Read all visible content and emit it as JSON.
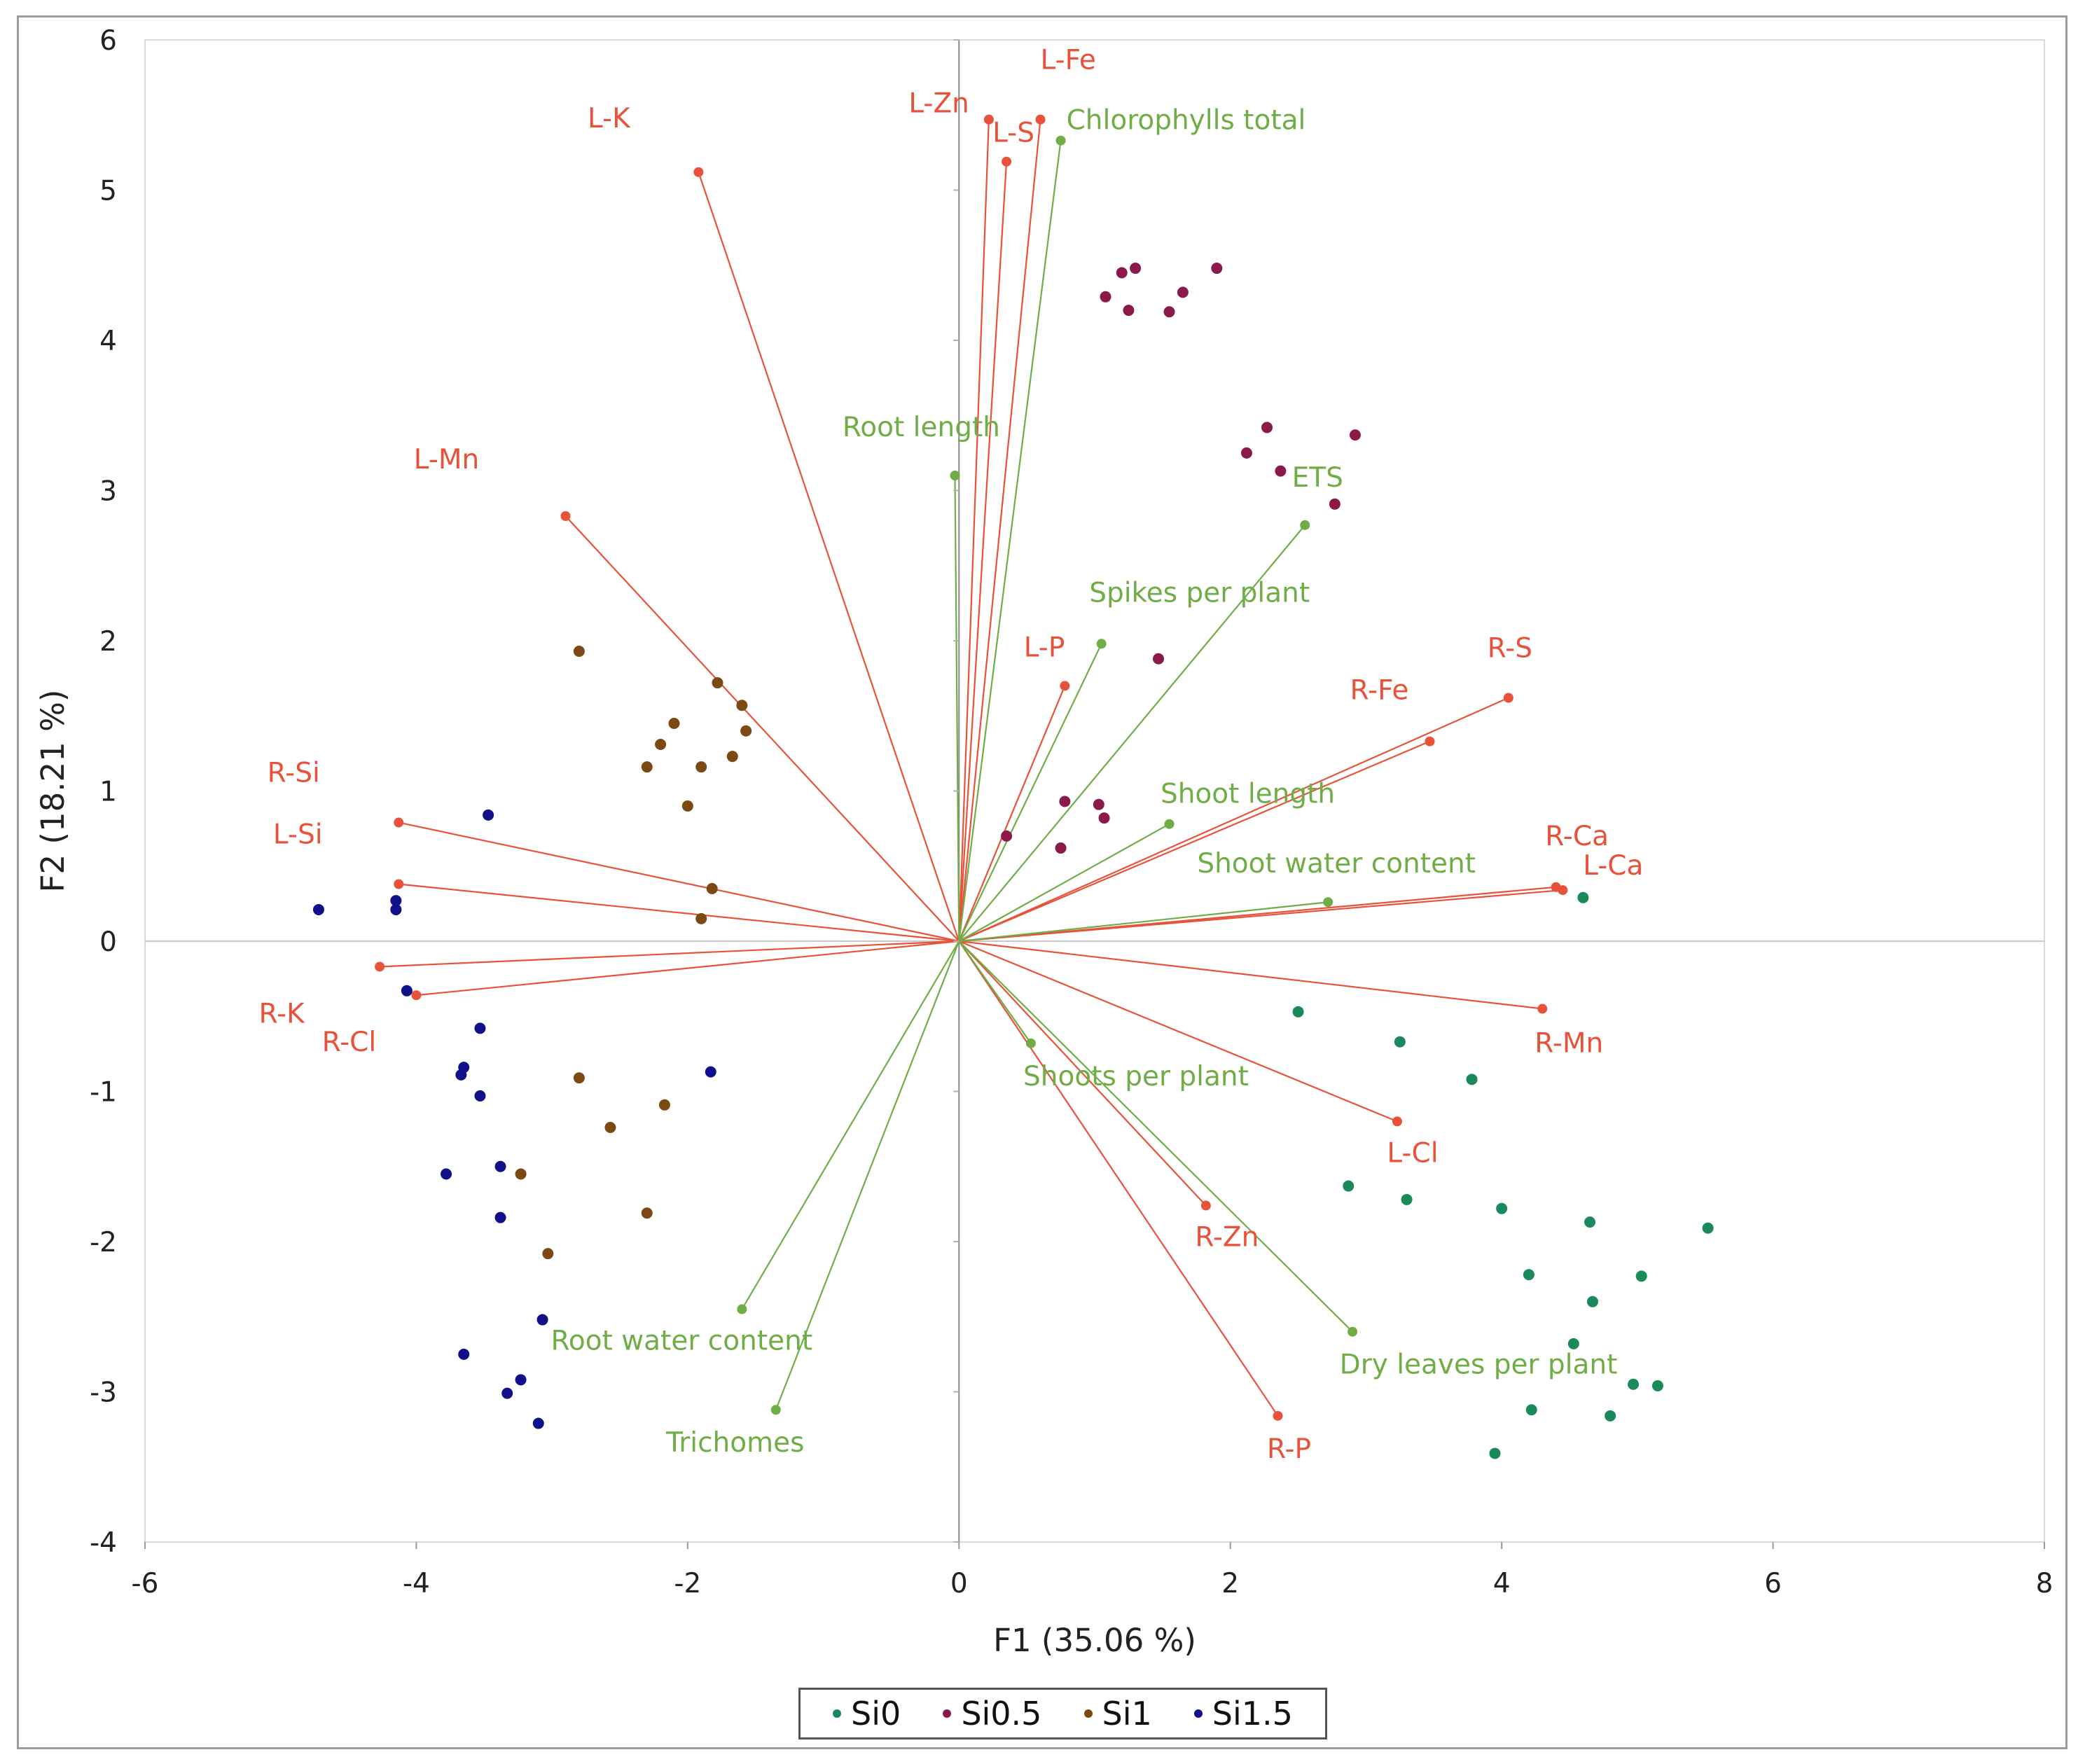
{
  "chart_data": {
    "type": "scatter",
    "subtype": "pca-biplot",
    "xlabel": "F1 (35.06 %)",
    "ylabel": "F2 (18.21 %)",
    "xlim": [
      -6,
      8
    ],
    "ylim": [
      -4,
      6
    ],
    "x_ticks": [
      -6,
      -4,
      -2,
      0,
      2,
      4,
      6,
      8
    ],
    "y_ticks": [
      -4,
      -3,
      -2,
      -1,
      0,
      1,
      2,
      3,
      4,
      5,
      6
    ],
    "grid": false,
    "zero_lines": true,
    "legend_position": "bottom-center",
    "series": [
      {
        "name": "Si0",
        "color": "#1a8a5a",
        "points": [
          [
            4.6,
            0.29
          ],
          [
            2.5,
            -0.47
          ],
          [
            3.25,
            -0.67
          ],
          [
            3.78,
            -0.92
          ],
          [
            2.87,
            -1.63
          ],
          [
            3.3,
            -1.72
          ],
          [
            4.0,
            -1.78
          ],
          [
            4.65,
            -1.87
          ],
          [
            5.52,
            -1.91
          ],
          [
            4.2,
            -2.22
          ],
          [
            5.03,
            -2.23
          ],
          [
            4.67,
            -2.4
          ],
          [
            4.53,
            -2.68
          ],
          [
            4.97,
            -2.95
          ],
          [
            5.15,
            -2.96
          ],
          [
            4.22,
            -3.12
          ],
          [
            4.8,
            -3.16
          ],
          [
            3.95,
            -3.41
          ]
        ]
      },
      {
        "name": "Si0.5",
        "color": "#8b1a4a",
        "points": [
          [
            1.2,
            4.45
          ],
          [
            1.3,
            4.48
          ],
          [
            1.9,
            4.48
          ],
          [
            1.08,
            4.29
          ],
          [
            1.65,
            4.32
          ],
          [
            1.25,
            4.2
          ],
          [
            1.55,
            4.19
          ],
          [
            2.27,
            3.42
          ],
          [
            2.92,
            3.37
          ],
          [
            2.12,
            3.25
          ],
          [
            2.37,
            3.13
          ],
          [
            2.77,
            2.91
          ],
          [
            1.47,
            1.88
          ],
          [
            0.78,
            0.93
          ],
          [
            1.03,
            0.91
          ],
          [
            1.07,
            0.82
          ],
          [
            0.35,
            0.7
          ],
          [
            0.75,
            0.62
          ]
        ]
      },
      {
        "name": "Si1",
        "color": "#7a4a12",
        "points": [
          [
            -2.8,
            1.93
          ],
          [
            -1.78,
            1.72
          ],
          [
            -1.6,
            1.57
          ],
          [
            -2.1,
            1.45
          ],
          [
            -1.57,
            1.4
          ],
          [
            -2.2,
            1.31
          ],
          [
            -1.67,
            1.23
          ],
          [
            -2.3,
            1.16
          ],
          [
            -1.9,
            1.16
          ],
          [
            -2.0,
            0.9
          ],
          [
            -1.82,
            0.35
          ],
          [
            -1.9,
            0.15
          ],
          [
            -2.8,
            -0.91
          ],
          [
            -2.17,
            -1.09
          ],
          [
            -2.57,
            -1.24
          ],
          [
            -3.23,
            -1.55
          ],
          [
            -2.3,
            -1.81
          ],
          [
            -3.03,
            -2.08
          ]
        ]
      },
      {
        "name": "Si1.5",
        "color": "#10108a",
        "points": [
          [
            -3.47,
            0.84
          ],
          [
            -4.72,
            0.21
          ],
          [
            -4.15,
            0.27
          ],
          [
            -4.15,
            0.21
          ],
          [
            -4.07,
            -0.33
          ],
          [
            -3.53,
            -0.58
          ],
          [
            -3.65,
            -0.84
          ],
          [
            -3.67,
            -0.89
          ],
          [
            -3.53,
            -1.03
          ],
          [
            -1.83,
            -0.87
          ],
          [
            -3.78,
            -1.55
          ],
          [
            -3.38,
            -1.5
          ],
          [
            -3.38,
            -1.84
          ],
          [
            -3.07,
            -2.52
          ],
          [
            -3.65,
            -2.75
          ],
          [
            -3.23,
            -2.92
          ],
          [
            -3.33,
            -3.01
          ],
          [
            -3.1,
            -3.21
          ]
        ]
      }
    ],
    "variables": [
      {
        "label": "L-Zn",
        "group": "mineral",
        "x": 0.22,
        "y": 5.47
      },
      {
        "label": "L-S",
        "group": "mineral",
        "x": 0.35,
        "y": 5.19
      },
      {
        "label": "L-Fe",
        "group": "mineral",
        "x": 0.6,
        "y": 5.47
      },
      {
        "label": "L-K",
        "group": "mineral",
        "x": -1.92,
        "y": 5.12
      },
      {
        "label": "L-Mn",
        "group": "mineral",
        "x": -2.9,
        "y": 2.83
      },
      {
        "label": "L-P",
        "group": "mineral",
        "x": 0.78,
        "y": 1.7
      },
      {
        "label": "R-S",
        "group": "mineral",
        "x": 4.05,
        "y": 1.62
      },
      {
        "label": "R-Fe",
        "group": "mineral",
        "x": 3.47,
        "y": 1.33
      },
      {
        "label": "R-Ca",
        "group": "mineral",
        "x": 4.4,
        "y": 0.36
      },
      {
        "label": "L-Ca",
        "group": "mineral",
        "x": 4.45,
        "y": 0.34
      },
      {
        "label": "R-Si",
        "group": "mineral",
        "x": -4.13,
        "y": 0.79
      },
      {
        "label": "L-Si",
        "group": "mineral",
        "x": -4.13,
        "y": 0.38
      },
      {
        "label": "R-K",
        "group": "mineral",
        "x": -4.27,
        "y": -0.17
      },
      {
        "label": "R-Cl",
        "group": "mineral",
        "x": -4.0,
        "y": -0.36
      },
      {
        "label": "R-Mn",
        "group": "mineral",
        "x": 4.3,
        "y": -0.45
      },
      {
        "label": "L-Cl",
        "group": "mineral",
        "x": 3.23,
        "y": -1.2
      },
      {
        "label": "R-Zn",
        "group": "mineral",
        "x": 1.82,
        "y": -1.76
      },
      {
        "label": "R-P",
        "group": "mineral",
        "x": 2.35,
        "y": -3.16
      },
      {
        "label": "Chlorophylls total",
        "group": "trait",
        "x": 0.75,
        "y": 5.33
      },
      {
        "label": "Root length",
        "group": "trait",
        "x": -0.03,
        "y": 3.1
      },
      {
        "label": "ETS",
        "group": "trait",
        "x": 2.55,
        "y": 2.77
      },
      {
        "label": "Spikes per plant",
        "group": "trait",
        "x": 1.05,
        "y": 1.98
      },
      {
        "label": "Shoot length",
        "group": "trait",
        "x": 1.55,
        "y": 0.78
      },
      {
        "label": "Shoot water content",
        "group": "trait",
        "x": 2.72,
        "y": 0.26
      },
      {
        "label": "Shoots per plant",
        "group": "trait",
        "x": 0.53,
        "y": -0.68
      },
      {
        "label": "Dry leaves per plant",
        "group": "trait",
        "x": 2.9,
        "y": -2.6
      },
      {
        "label": "Root water content",
        "group": "trait",
        "x": -1.6,
        "y": -2.45
      },
      {
        "label": "Trichomes",
        "group": "trait",
        "x": -1.35,
        "y": -3.12
      }
    ],
    "colors": {
      "mineral": "#e8523a",
      "trait": "#70ad47",
      "axis": "#c8c8c8",
      "frame": "#d9d9d9"
    }
  }
}
